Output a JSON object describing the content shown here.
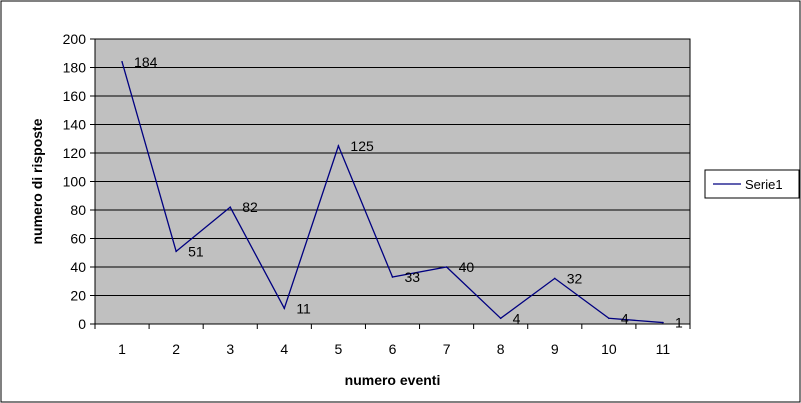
{
  "chart_data": {
    "type": "line",
    "x": [
      1,
      2,
      3,
      4,
      5,
      6,
      7,
      8,
      9,
      10,
      11
    ],
    "series": [
      {
        "name": "Serie1",
        "values": [
          184,
          51,
          82,
          11,
          125,
          33,
          40,
          4,
          32,
          4,
          1
        ]
      }
    ],
    "data_labels": [
      "184",
      "51",
      "82",
      "11",
      "125",
      "33",
      "40",
      "4",
      "32",
      "4",
      "1"
    ],
    "title": "",
    "xlabel": "numero eventi",
    "ylabel": "numero di risposte",
    "ylim": [
      0,
      200
    ],
    "ytick_step": 20,
    "grid": "horizontal",
    "legend_position": "right",
    "colors": {
      "plot_background": "#c0c0c0",
      "series_line": "#000080",
      "gridline": "#000000",
      "border": "#000000"
    }
  }
}
